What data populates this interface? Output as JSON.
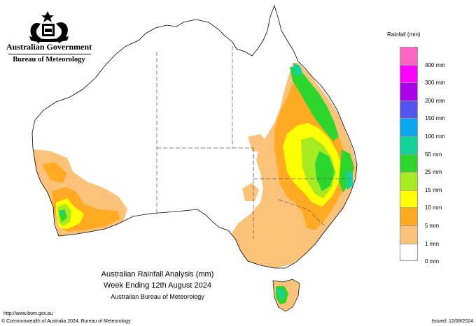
{
  "header": {
    "government": "Australian Government",
    "bureau": "Bureau of Meteorology"
  },
  "legend": {
    "title": "Rainfall (mm)",
    "items": [
      {
        "label": "400 mm",
        "color": "#ff66c2"
      },
      {
        "label": "300 mm",
        "color": "#ff00ff"
      },
      {
        "label": "200 mm",
        "color": "#aa00ee"
      },
      {
        "label": "150 mm",
        "color": "#5555ee"
      },
      {
        "label": "100 mm",
        "color": "#0aa6ee"
      },
      {
        "label": "50 mm",
        "color": "#14d39a"
      },
      {
        "label": "25 mm",
        "color": "#2cd62c"
      },
      {
        "label": "15 mm",
        "color": "#a6ea22"
      },
      {
        "label": "10 mm",
        "color": "#ffff00"
      },
      {
        "label": "5 mm",
        "color": "#ffaa22"
      },
      {
        "label": "1 mm",
        "color": "#fbc37a"
      },
      {
        "label": "0 mm",
        "color": "#ffffff"
      }
    ]
  },
  "caption": {
    "line1": "Australian Rainfall Analysis (mm)",
    "line2": "Week Ending 12th August 2024",
    "line3": "Australian Bureau of Meteorology"
  },
  "footer": {
    "url": "http://www.bom.gov.au",
    "copyright": "© Commonwealth of Australia 2024, Bureau of Meteorology",
    "issued": "Issued: 12/08/2024"
  }
}
